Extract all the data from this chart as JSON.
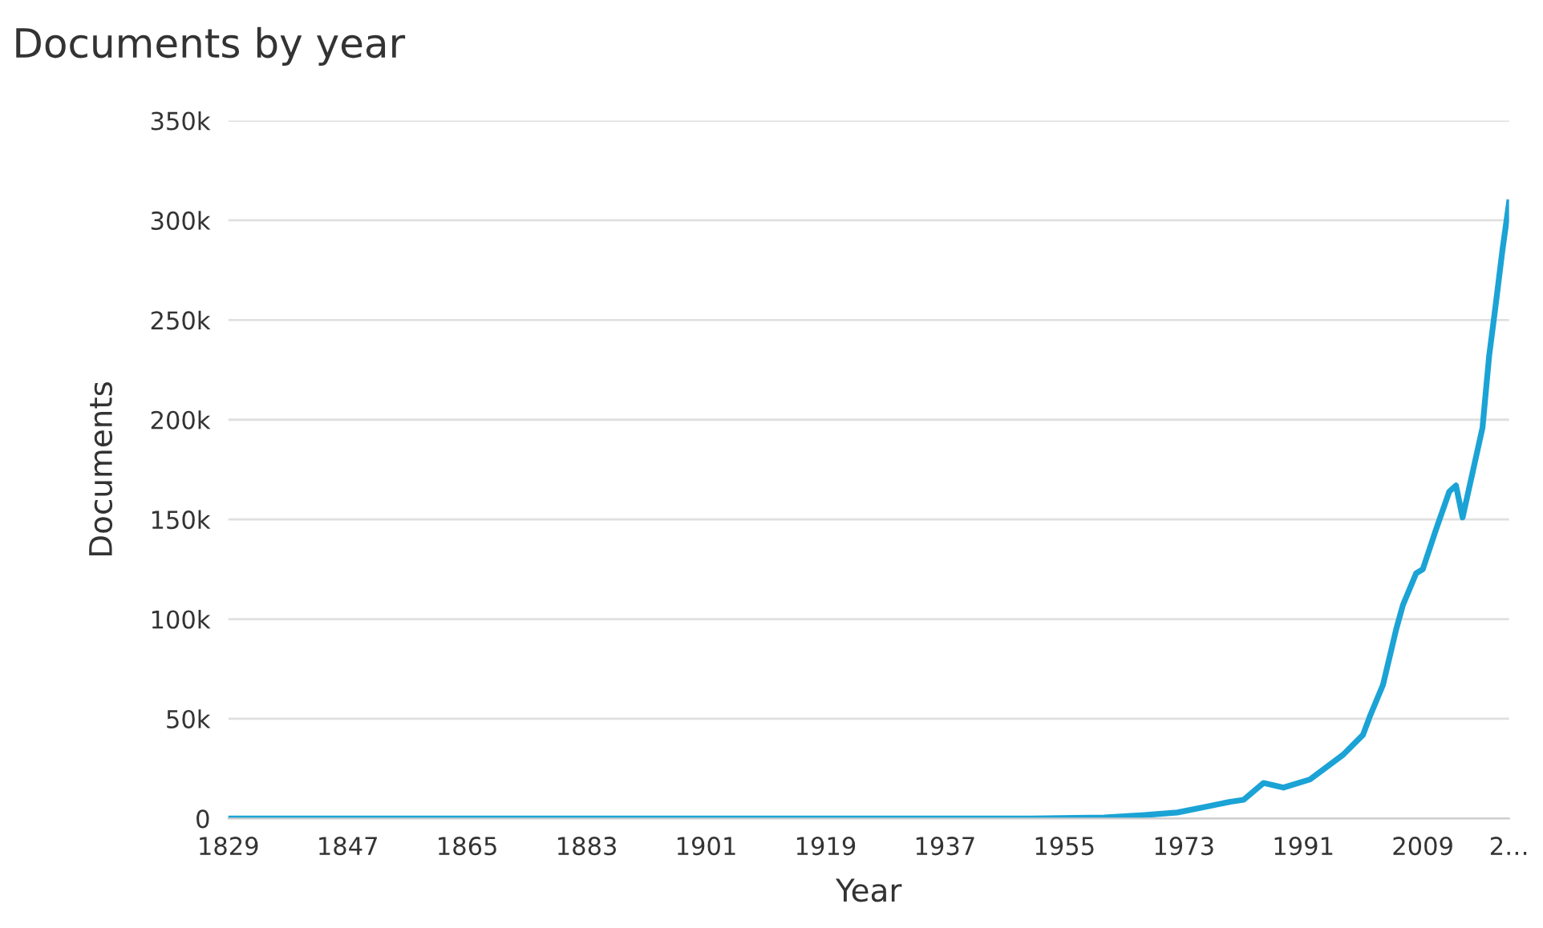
{
  "chart_data": {
    "type": "line",
    "title": "Documents by year",
    "xlabel": "Year",
    "ylabel": "Documents",
    "x": [
      1829,
      1900,
      1950,
      1961,
      1967,
      1972,
      1976,
      1980,
      1982,
      1985,
      1988,
      1992,
      1997,
      2000,
      2001,
      2003,
      2004,
      2005,
      2006,
      2008,
      2009,
      2011,
      2013,
      2014,
      2015,
      2018,
      2019,
      2020,
      2021,
      2022
    ],
    "series": [
      {
        "color": "#1ba3d6",
        "values": [
          0,
          0,
          0,
          500,
          1700,
          3000,
          5700,
          8400,
          9400,
          17800,
          15500,
          19600,
          32000,
          42000,
          51000,
          67000,
          81000,
          95000,
          107000,
          123000,
          125000,
          145000,
          164000,
          167000,
          151000,
          196000,
          232000,
          258000,
          285000,
          309000
        ]
      }
    ],
    "xlim": [
      1829,
      2022
    ],
    "xticks": [
      1829,
      1847,
      1865,
      1883,
      1901,
      1919,
      1937,
      1955,
      1973,
      1991,
      2009,
      {
        "value": 2022,
        "label": "2…"
      }
    ],
    "ylim": [
      0,
      350000
    ],
    "yticks": [
      {
        "value": 0,
        "label": "0"
      },
      {
        "value": 50000,
        "label": "50k"
      },
      {
        "value": 100000,
        "label": "100k"
      },
      {
        "value": 150000,
        "label": "150k"
      },
      {
        "value": 200000,
        "label": "200k"
      },
      {
        "value": 250000,
        "label": "250k"
      },
      {
        "value": 300000,
        "label": "300k"
      },
      {
        "value": 350000,
        "label": "350k"
      }
    ],
    "grid": "y",
    "marker": "none",
    "line_style": "solid"
  }
}
